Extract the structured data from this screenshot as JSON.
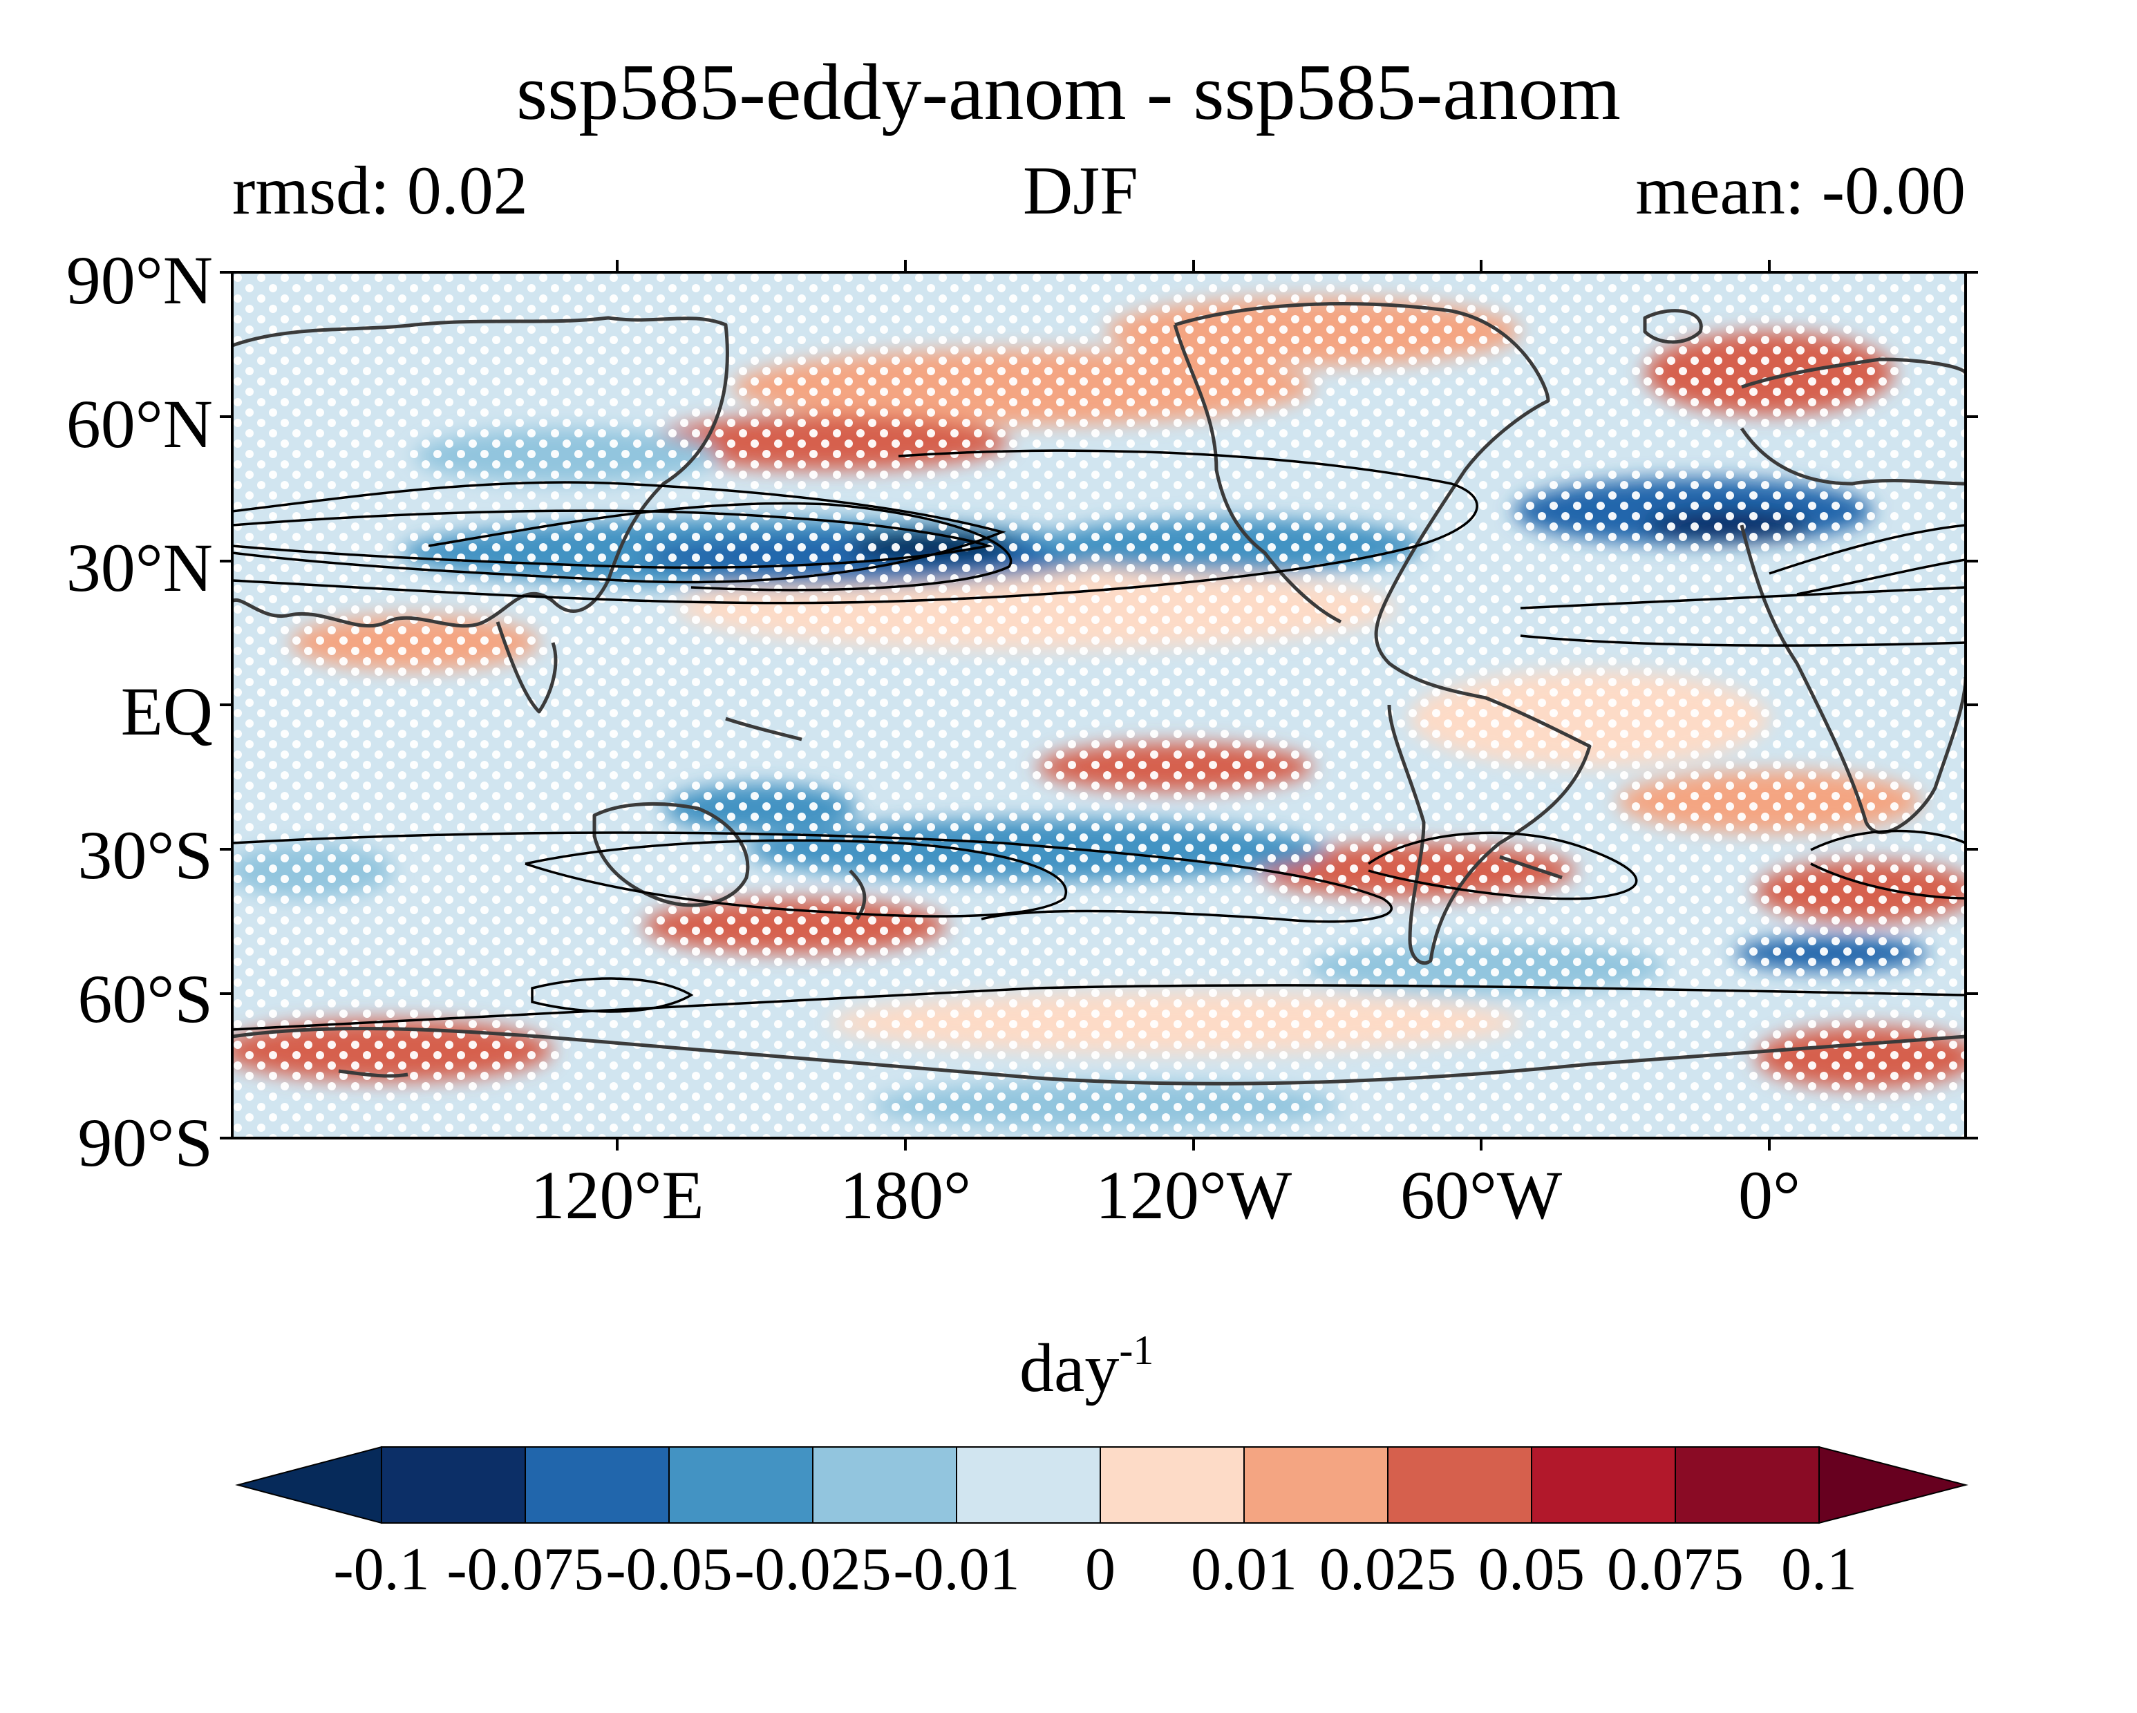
{
  "title": "ssp585-eddy-anom - ssp585-anom",
  "left_subtitle": "rmsd: 0.02",
  "center_subtitle": "DJF",
  "right_subtitle": "mean: -0.00",
  "map": {
    "projection": "equirectangular",
    "lon_range": [
      20,
      380
    ],
    "lat_range": [
      -90,
      90
    ],
    "y_ticks": [
      "90°N",
      "60°N",
      "30°N",
      "EQ",
      "30°S",
      "60°S",
      "90°S"
    ],
    "x_ticks": [
      "120°E",
      "180°",
      "120°W",
      "60°W",
      "0°"
    ],
    "stippling": "white dots over most of the domain",
    "contours": "black climatology contours in subtropical jets and southern storm track"
  },
  "colorbar": {
    "units_base": "day",
    "units_exp": "-1",
    "levels": [
      "-0.1",
      "-0.075",
      "-0.05",
      "-0.025",
      "-0.01",
      "0",
      "0.01",
      "0.025",
      "0.05",
      "0.075",
      "0.1"
    ],
    "colors": [
      "#062a5a",
      "#0c2f67",
      "#2166ac",
      "#4393c3",
      "#92c5de",
      "#d1e5f0",
      "#fddbc7",
      "#f4a582",
      "#d6604d",
      "#b2182b",
      "#8a0b25",
      "#67001f"
    ],
    "extend": "both"
  }
}
